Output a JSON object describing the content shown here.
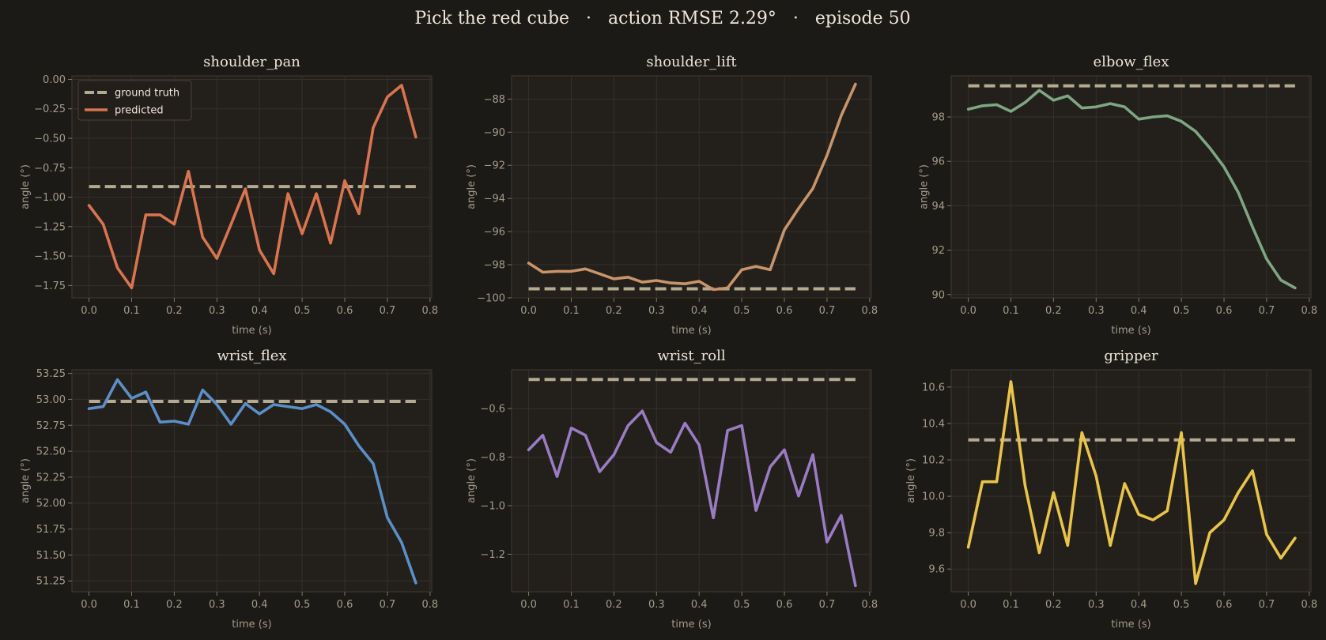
{
  "figure": {
    "title": "Pick the red cube   ·   action RMSE 2.29°   ·   episode 50"
  },
  "colors": {
    "background": "#1b1a16",
    "panel": "#231f1b",
    "ground_truth": "#b4aa92"
  },
  "chart_data": [
    {
      "type": "line",
      "title": "shoulder_pan",
      "xlabel": "time (s)",
      "ylabel": "angle (°)",
      "xlim": [
        -0.04,
        0.804
      ],
      "ylim": [
        -1.855,
        0.03
      ],
      "xticks": [
        0.0,
        0.1,
        0.2,
        0.3,
        0.4,
        0.5,
        0.6,
        0.7,
        0.8
      ],
      "xtick_labels": [
        "0.0",
        "0.1",
        "0.2",
        "0.3",
        "0.4",
        "0.5",
        "0.6",
        "0.7",
        "0.8"
      ],
      "yticks": [
        0.0,
        -0.25,
        -0.5,
        -0.75,
        -1.0,
        -1.25,
        -1.5,
        -1.75
      ],
      "ytick_labels": [
        "0.00",
        "−0.25",
        "−0.50",
        "−0.75",
        "−1.00",
        "−1.25",
        "−1.50",
        "−1.75"
      ],
      "grid": true,
      "legend": "upper-left",
      "x": [
        0.0,
        0.0333,
        0.0667,
        0.1,
        0.1333,
        0.1667,
        0.2,
        0.2333,
        0.2667,
        0.3,
        0.3333,
        0.3667,
        0.4,
        0.4333,
        0.4667,
        0.5,
        0.5333,
        0.5667,
        0.6,
        0.6333,
        0.6667,
        0.7,
        0.7333,
        0.7667
      ],
      "series": [
        {
          "name": "ground truth",
          "style": "dashed",
          "color": "#b4aa92",
          "values": [
            -0.91,
            -0.91,
            -0.91,
            -0.91,
            -0.91,
            -0.91,
            -0.91,
            -0.91,
            -0.91,
            -0.91,
            -0.91,
            -0.91,
            -0.91,
            -0.91,
            -0.91,
            -0.91,
            -0.91,
            -0.91,
            -0.91,
            -0.91,
            -0.91,
            -0.91,
            -0.91,
            -0.91
          ]
        },
        {
          "name": "predicted",
          "style": "solid",
          "color": "#d8744f",
          "values": [
            -1.07,
            -1.23,
            -1.6,
            -1.77,
            -1.15,
            -1.15,
            -1.23,
            -0.78,
            -1.34,
            -1.52,
            -1.23,
            -0.93,
            -1.45,
            -1.65,
            -0.97,
            -1.31,
            -0.97,
            -1.39,
            -0.86,
            -1.14,
            -0.41,
            -0.15,
            -0.05,
            -0.49
          ]
        }
      ]
    },
    {
      "type": "line",
      "title": "shoulder_lift",
      "xlabel": "time (s)",
      "ylabel": "angle (°)",
      "xlim": [
        -0.04,
        0.804
      ],
      "ylim": [
        -100.0,
        -86.6
      ],
      "xticks": [
        0.0,
        0.1,
        0.2,
        0.3,
        0.4,
        0.5,
        0.6,
        0.7,
        0.8
      ],
      "xtick_labels": [
        "0.0",
        "0.1",
        "0.2",
        "0.3",
        "0.4",
        "0.5",
        "0.6",
        "0.7",
        "0.8"
      ],
      "yticks": [
        -88,
        -90,
        -92,
        -94,
        -96,
        -98,
        -100
      ],
      "ytick_labels": [
        "−88",
        "−90",
        "−92",
        "−94",
        "−96",
        "−98",
        "−100"
      ],
      "grid": true,
      "x": [
        0.0,
        0.0333,
        0.0667,
        0.1,
        0.1333,
        0.1667,
        0.2,
        0.2333,
        0.2667,
        0.3,
        0.3333,
        0.3667,
        0.4,
        0.4333,
        0.4667,
        0.5,
        0.5333,
        0.5667,
        0.6,
        0.6333,
        0.6667,
        0.7,
        0.7333,
        0.7667
      ],
      "series": [
        {
          "name": "ground truth",
          "style": "dashed",
          "color": "#b4aa92",
          "values": [
            -99.45,
            -99.45,
            -99.45,
            -99.45,
            -99.45,
            -99.45,
            -99.45,
            -99.45,
            -99.45,
            -99.45,
            -99.45,
            -99.45,
            -99.45,
            -99.45,
            -99.45,
            -99.45,
            -99.45,
            -99.45,
            -99.45,
            -99.45,
            -99.45,
            -99.45,
            -99.45,
            -99.45
          ]
        },
        {
          "name": "predicted",
          "style": "solid",
          "color": "#c8946a",
          "values": [
            -97.9,
            -98.45,
            -98.4,
            -98.4,
            -98.25,
            -98.55,
            -98.85,
            -98.75,
            -99.05,
            -98.95,
            -99.1,
            -99.15,
            -99.0,
            -99.5,
            -99.4,
            -98.3,
            -98.1,
            -98.3,
            -95.9,
            -94.6,
            -93.4,
            -91.4,
            -89.0,
            -87.1
          ]
        }
      ]
    },
    {
      "type": "line",
      "title": "elbow_flex",
      "xlabel": "time (s)",
      "ylabel": "angle (°)",
      "xlim": [
        -0.04,
        0.804
      ],
      "ylim": [
        89.85,
        99.85
      ],
      "xticks": [
        0.0,
        0.1,
        0.2,
        0.3,
        0.4,
        0.5,
        0.6,
        0.7,
        0.8
      ],
      "xtick_labels": [
        "0.0",
        "0.1",
        "0.2",
        "0.3",
        "0.4",
        "0.5",
        "0.6",
        "0.7",
        "0.8"
      ],
      "yticks": [
        98,
        96,
        94,
        92,
        90
      ],
      "ytick_labels": [
        "98",
        "96",
        "94",
        "92",
        "90"
      ],
      "grid": true,
      "x": [
        0.0,
        0.0333,
        0.0667,
        0.1,
        0.1333,
        0.1667,
        0.2,
        0.2333,
        0.2667,
        0.3,
        0.3333,
        0.3667,
        0.4,
        0.4333,
        0.4667,
        0.5,
        0.5333,
        0.5667,
        0.6,
        0.6333,
        0.6667,
        0.7,
        0.7333,
        0.7667
      ],
      "series": [
        {
          "name": "ground truth",
          "style": "dashed",
          "color": "#b4aa92",
          "values": [
            99.4,
            99.4,
            99.4,
            99.4,
            99.4,
            99.4,
            99.4,
            99.4,
            99.4,
            99.4,
            99.4,
            99.4,
            99.4,
            99.4,
            99.4,
            99.4,
            99.4,
            99.4,
            99.4,
            99.4,
            99.4,
            99.4,
            99.4,
            99.4
          ]
        },
        {
          "name": "predicted",
          "style": "solid",
          "color": "#7ea683",
          "values": [
            98.35,
            98.5,
            98.55,
            98.25,
            98.65,
            99.2,
            98.75,
            98.95,
            98.4,
            98.45,
            98.6,
            98.45,
            97.9,
            98.0,
            98.05,
            97.8,
            97.35,
            96.6,
            95.75,
            94.6,
            93.05,
            91.6,
            90.65,
            90.3
          ]
        }
      ]
    },
    {
      "type": "line",
      "title": "wrist_flex",
      "xlabel": "time (s)",
      "ylabel": "angle (°)",
      "xlim": [
        -0.04,
        0.804
      ],
      "ylim": [
        51.145,
        53.285
      ],
      "xticks": [
        0.0,
        0.1,
        0.2,
        0.3,
        0.4,
        0.5,
        0.6,
        0.7,
        0.8
      ],
      "xtick_labels": [
        "0.0",
        "0.1",
        "0.2",
        "0.3",
        "0.4",
        "0.5",
        "0.6",
        "0.7",
        "0.8"
      ],
      "yticks": [
        53.25,
        53.0,
        52.75,
        52.5,
        52.25,
        52.0,
        51.75,
        51.5,
        51.25
      ],
      "ytick_labels": [
        "53.25",
        "53.00",
        "52.75",
        "52.50",
        "52.25",
        "52.00",
        "51.75",
        "51.50",
        "51.25"
      ],
      "grid": true,
      "x": [
        0.0,
        0.0333,
        0.0667,
        0.1,
        0.1333,
        0.1667,
        0.2,
        0.2333,
        0.2667,
        0.3,
        0.3333,
        0.3667,
        0.4,
        0.4333,
        0.4667,
        0.5,
        0.5333,
        0.5667,
        0.6,
        0.6333,
        0.6667,
        0.7,
        0.7333,
        0.7667
      ],
      "series": [
        {
          "name": "ground truth",
          "style": "dashed",
          "color": "#b4aa92",
          "values": [
            52.98,
            52.98,
            52.98,
            52.98,
            52.98,
            52.98,
            52.98,
            52.98,
            52.98,
            52.98,
            52.98,
            52.98,
            52.98,
            52.98,
            52.98,
            52.98,
            52.98,
            52.98,
            52.98,
            52.98,
            52.98,
            52.98,
            52.98,
            52.98
          ]
        },
        {
          "name": "predicted",
          "style": "solid",
          "color": "#5b8fc8",
          "values": [
            52.91,
            52.93,
            53.19,
            53.01,
            53.07,
            52.78,
            52.79,
            52.76,
            53.09,
            52.95,
            52.76,
            52.96,
            52.86,
            52.95,
            52.93,
            52.91,
            52.95,
            52.88,
            52.76,
            52.55,
            52.38,
            51.86,
            51.62,
            51.23
          ]
        }
      ]
    },
    {
      "type": "line",
      "title": "wrist_roll",
      "xlabel": "time (s)",
      "ylabel": "angle (°)",
      "xlim": [
        -0.04,
        0.804
      ],
      "ylim": [
        -1.355,
        -0.44
      ],
      "xticks": [
        0.0,
        0.1,
        0.2,
        0.3,
        0.4,
        0.5,
        0.6,
        0.7,
        0.8
      ],
      "xtick_labels": [
        "0.0",
        "0.1",
        "0.2",
        "0.3",
        "0.4",
        "0.5",
        "0.6",
        "0.7",
        "0.8"
      ],
      "yticks": [
        -0.6,
        -0.8,
        -1.0,
        -1.2
      ],
      "ytick_labels": [
        "−0.6",
        "−0.8",
        "−1.0",
        "−1.2"
      ],
      "grid": true,
      "x": [
        0.0,
        0.0333,
        0.0667,
        0.1,
        0.1333,
        0.1667,
        0.2,
        0.2333,
        0.2667,
        0.3,
        0.3333,
        0.3667,
        0.4,
        0.4333,
        0.4667,
        0.5,
        0.5333,
        0.5667,
        0.6,
        0.6333,
        0.6667,
        0.7,
        0.7333,
        0.7667
      ],
      "series": [
        {
          "name": "ground truth",
          "style": "dashed",
          "color": "#b4aa92",
          "values": [
            -0.48,
            -0.48,
            -0.48,
            -0.48,
            -0.48,
            -0.48,
            -0.48,
            -0.48,
            -0.48,
            -0.48,
            -0.48,
            -0.48,
            -0.48,
            -0.48,
            -0.48,
            -0.48,
            -0.48,
            -0.48,
            -0.48,
            -0.48,
            -0.48,
            -0.48,
            -0.48,
            -0.48
          ]
        },
        {
          "name": "predicted",
          "style": "solid",
          "color": "#9a7cc4",
          "values": [
            -0.77,
            -0.71,
            -0.88,
            -0.68,
            -0.71,
            -0.86,
            -0.79,
            -0.67,
            -0.61,
            -0.74,
            -0.78,
            -0.66,
            -0.75,
            -1.05,
            -0.69,
            -0.67,
            -1.02,
            -0.84,
            -0.77,
            -0.96,
            -0.79,
            -1.15,
            -1.04,
            -1.33
          ]
        }
      ]
    },
    {
      "type": "line",
      "title": "gripper",
      "xlabel": "time (s)",
      "ylabel": "angle (°)",
      "xlim": [
        -0.04,
        0.804
      ],
      "ylim": [
        9.475,
        10.695
      ],
      "xticks": [
        0.0,
        0.1,
        0.2,
        0.3,
        0.4,
        0.5,
        0.6,
        0.7,
        0.8
      ],
      "xtick_labels": [
        "0.0",
        "0.1",
        "0.2",
        "0.3",
        "0.4",
        "0.5",
        "0.6",
        "0.7",
        "0.8"
      ],
      "yticks": [
        10.6,
        10.4,
        10.2,
        10.0,
        9.8,
        9.6
      ],
      "ytick_labels": [
        "10.6",
        "10.4",
        "10.2",
        "10.0",
        "9.8",
        "9.6"
      ],
      "grid": true,
      "x": [
        0.0,
        0.0333,
        0.0667,
        0.1,
        0.1333,
        0.1667,
        0.2,
        0.2333,
        0.2667,
        0.3,
        0.3333,
        0.3667,
        0.4,
        0.4333,
        0.4667,
        0.5,
        0.5333,
        0.5667,
        0.6,
        0.6333,
        0.6667,
        0.7,
        0.7333,
        0.7667
      ],
      "series": [
        {
          "name": "ground truth",
          "style": "dashed",
          "color": "#b4aa92",
          "values": [
            10.31,
            10.31,
            10.31,
            10.31,
            10.31,
            10.31,
            10.31,
            10.31,
            10.31,
            10.31,
            10.31,
            10.31,
            10.31,
            10.31,
            10.31,
            10.31,
            10.31,
            10.31,
            10.31,
            10.31,
            10.31,
            10.31,
            10.31,
            10.31
          ]
        },
        {
          "name": "predicted",
          "style": "solid",
          "color": "#e8c44a",
          "values": [
            9.72,
            10.08,
            10.08,
            10.63,
            10.06,
            9.69,
            10.02,
            9.73,
            10.35,
            10.11,
            9.73,
            10.07,
            9.9,
            9.87,
            9.92,
            10.35,
            9.52,
            9.8,
            9.87,
            10.02,
            10.14,
            9.79,
            9.66,
            9.77
          ]
        }
      ]
    }
  ]
}
